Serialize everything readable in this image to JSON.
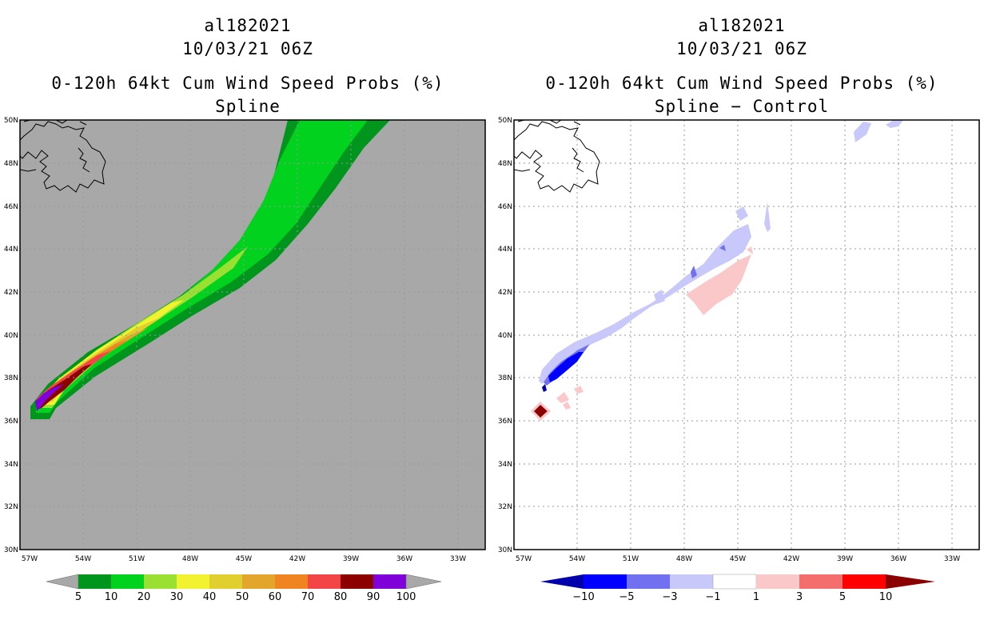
{
  "left_panel": {
    "storm_id": "al182021",
    "datetime": "10/03/21 06Z",
    "product": "0-120h 64kt Cum Wind Speed Probs (%)",
    "subtitle": "Spline",
    "colorbar_labels": [
      "5",
      "10",
      "20",
      "30",
      "40",
      "50",
      "60",
      "70",
      "80",
      "90",
      "100"
    ],
    "colorbar_colors": [
      "#00961e",
      "#00d21e",
      "#99e033",
      "#f2f230",
      "#e0cf2e",
      "#e4a52d",
      "#ef8421",
      "#f34545",
      "#8d0000",
      "#7f00d9"
    ]
  },
  "right_panel": {
    "storm_id": "al182021",
    "datetime": "10/03/21 06Z",
    "product": "0-120h 64kt Cum Wind Speed Probs (%)",
    "subtitle": "Spline − Control",
    "colorbar_labels": [
      "−10",
      "−5",
      "−3",
      "−1",
      "1",
      "3",
      "5",
      "10"
    ],
    "colorbar_colors": [
      "#0000ad",
      "#0000ff",
      "#7070f0",
      "#c8c8fa",
      "#ffffff",
      "#fac8c8",
      "#f56e6e",
      "#ff0000",
      "#8b0000"
    ]
  },
  "axes": {
    "lat_labels": [
      "50N",
      "48N",
      "46N",
      "44N",
      "42N",
      "40N",
      "38N",
      "36N",
      "34N",
      "32N",
      "30N"
    ],
    "lon_labels": [
      "57W",
      "54W",
      "51W",
      "48W",
      "45W",
      "42W",
      "39W",
      "36W",
      "33W"
    ]
  },
  "colors": {
    "land_bg": "#a8a8a8",
    "grid": "#9a9a9a"
  }
}
